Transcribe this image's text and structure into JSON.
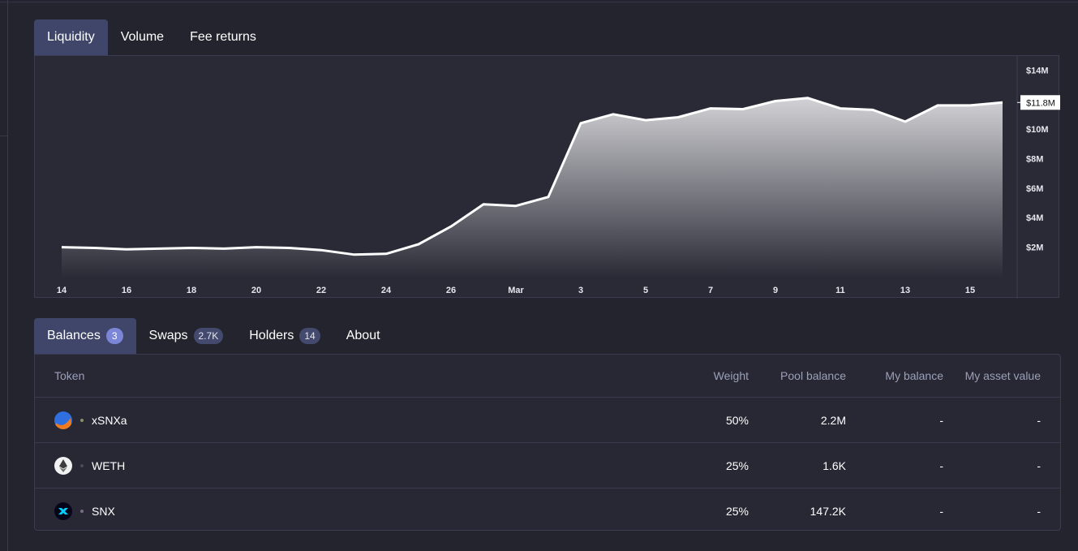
{
  "chart_tabs": [
    {
      "label": "Liquidity",
      "active": true
    },
    {
      "label": "Volume",
      "active": false
    },
    {
      "label": "Fee returns",
      "active": false
    }
  ],
  "chart_data": {
    "type": "area",
    "x_tick_labels": [
      "14",
      "16",
      "18",
      "20",
      "22",
      "24",
      "26",
      "Mar",
      "3",
      "5",
      "7",
      "9",
      "11",
      "13",
      "15"
    ],
    "y_tick_labels": [
      "$14M",
      "$12M",
      "$10M",
      "$8M",
      "$6M",
      "$4M",
      "$2M"
    ],
    "current_value_label": "$11.8M",
    "x": [
      "Feb 14",
      "Feb 15",
      "Feb 16",
      "Feb 17",
      "Feb 18",
      "Feb 19",
      "Feb 20",
      "Feb 21",
      "Feb 22",
      "Feb 23",
      "Feb 24",
      "Feb 25",
      "Feb 26",
      "Feb 27",
      "Feb 28",
      "Mar 1",
      "Mar 2",
      "Mar 3",
      "Mar 4",
      "Mar 5",
      "Mar 6",
      "Mar 7",
      "Mar 8",
      "Mar 9",
      "Mar 10",
      "Mar 11",
      "Mar 12",
      "Mar 13",
      "Mar 14",
      "Mar 15"
    ],
    "values": [
      2.0,
      1.95,
      1.85,
      1.9,
      1.95,
      1.9,
      2.0,
      1.95,
      1.8,
      1.5,
      1.55,
      2.2,
      3.4,
      4.9,
      4.8,
      5.4,
      10.4,
      11.0,
      10.6,
      10.8,
      11.4,
      11.35,
      11.9,
      12.1,
      11.4,
      11.3,
      10.5,
      11.6,
      11.6,
      11.8
    ],
    "ylim": [
      0,
      14.5
    ],
    "ylabel_unit": "$M",
    "grid": false,
    "colors": {
      "line": "#ffffff",
      "fill_top": "#d2d2d6",
      "fill_bottom": "#2a2b36",
      "background": "#292a35"
    }
  },
  "table_tabs": [
    {
      "label": "Balances",
      "badge": "3",
      "active": true
    },
    {
      "label": "Swaps",
      "badge": "2.7K",
      "active": false
    },
    {
      "label": "Holders",
      "badge": "14",
      "active": false
    },
    {
      "label": "About",
      "badge": null,
      "active": false
    }
  ],
  "table": {
    "headers": {
      "token": "Token",
      "weight": "Weight",
      "pool_balance": "Pool balance",
      "my_balance": "My balance",
      "my_asset_value": "My asset value"
    },
    "rows": [
      {
        "token": "xSNXa",
        "icon": "xsnxa-icon",
        "dot_color": "#8a8f6a",
        "weight": "50%",
        "pool_balance": "2.2M",
        "my_balance": "-",
        "my_asset_value": "-"
      },
      {
        "token": "WETH",
        "icon": "weth-icon",
        "dot_color": "#4a4b5a",
        "weight": "25%",
        "pool_balance": "1.6K",
        "my_balance": "-",
        "my_asset_value": "-"
      },
      {
        "token": "SNX",
        "icon": "snx-icon",
        "dot_color": "#7a6a86",
        "weight": "25%",
        "pool_balance": "147.2K",
        "my_balance": "-",
        "my_asset_value": "-"
      }
    ]
  }
}
